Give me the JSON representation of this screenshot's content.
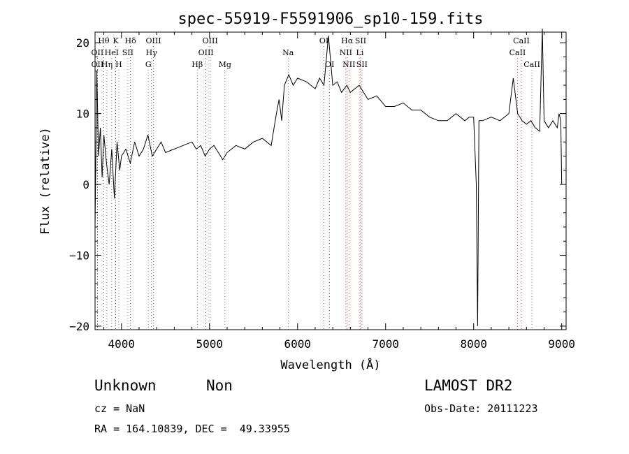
{
  "chart_data": {
    "type": "line",
    "title": "spec-55919-F5591906_sp10-159.fits",
    "xlabel": "Wavelength (Å)",
    "ylabel": "Flux (relative)",
    "xlim": [
      3700,
      9050
    ],
    "ylim": [
      -20.5,
      21.5
    ],
    "xticks": [
      4000,
      5000,
      6000,
      7000,
      8000,
      9000
    ],
    "xtick_labels": [
      "4000",
      "5000",
      "6000",
      "7000",
      "8000",
      "9000"
    ],
    "yticks": [
      -20,
      -10,
      0,
      10,
      20
    ],
    "ytick_labels": [
      "−20",
      "−10",
      "0",
      "10",
      "20"
    ],
    "grid": false,
    "series": [
      {
        "x": [
          3700,
          3720,
          3740,
          3760,
          3780,
          3800,
          3830,
          3860,
          3890,
          3920,
          3950,
          3980,
          4000,
          4050,
          4100,
          4150,
          4200,
          4250,
          4300,
          4350,
          4400,
          4450,
          4500,
          4600,
          4700,
          4800,
          4850,
          4900,
          4950,
          5000,
          5050,
          5100,
          5150,
          5200,
          5250,
          5300,
          5400,
          5500,
          5600,
          5700,
          5760,
          5790,
          5820,
          5850,
          5900,
          5950,
          6000,
          6100,
          6200,
          6250,
          6300,
          6350,
          6400,
          6450,
          6500,
          6560,
          6600,
          6700,
          6800,
          6900,
          7000,
          7100,
          7200,
          7300,
          7400,
          7500,
          7600,
          7700,
          7800,
          7900,
          7950,
          8000,
          8030,
          8045,
          8060,
          8100,
          8200,
          8300,
          8400,
          8450,
          8500,
          8550,
          8600,
          8650,
          8700,
          8750,
          8780,
          8800,
          8850,
          8900,
          8950,
          8970,
          8990,
          9000
        ],
        "y": [
          -6,
          16,
          4,
          8,
          1,
          7,
          3,
          0,
          5,
          -2,
          6,
          2,
          4,
          5,
          3,
          6,
          4,
          5,
          7,
          4,
          5,
          6,
          4.5,
          5,
          5.5,
          6,
          5,
          5.5,
          4,
          5,
          5.5,
          4.5,
          3.5,
          4.5,
          5,
          5.5,
          5,
          6,
          6.5,
          5.5,
          10,
          12,
          9,
          14,
          15.5,
          14,
          15,
          14.5,
          13.5,
          15,
          14,
          21,
          14,
          14.5,
          13,
          14,
          13,
          14,
          12,
          12.5,
          11,
          11,
          11.5,
          10.5,
          10.5,
          9.5,
          9,
          9,
          10,
          9,
          9.5,
          9.5,
          0,
          -20,
          9,
          9,
          9.5,
          9,
          10,
          15,
          10,
          9,
          8.5,
          9,
          8,
          7.5,
          22,
          9,
          8,
          9,
          8,
          10,
          9,
          0
        ]
      }
    ],
    "line_markers": [
      {
        "label": "Hθ",
        "x": 3798,
        "row": 0,
        "color": "black"
      },
      {
        "label": "K",
        "x": 3934,
        "row": 0,
        "color": "black"
      },
      {
        "label": "Hδ",
        "x": 4102,
        "row": 0,
        "color": "black"
      },
      {
        "label": "OII",
        "x": 3727,
        "row": 1,
        "color": "black"
      },
      {
        "label": "HeI",
        "x": 3889,
        "row": 1,
        "color": "black"
      },
      {
        "label": "SII",
        "x": 4072,
        "row": 1,
        "color": "black"
      },
      {
        "label": "OII",
        "x": 3727,
        "row": 2,
        "color": "black"
      },
      {
        "label": "Hη",
        "x": 3835,
        "row": 2,
        "color": "black"
      },
      {
        "label": "H",
        "x": 3969,
        "row": 2,
        "color": "black"
      },
      {
        "label": "OIII",
        "x": 4363,
        "row": 0,
        "color": "black"
      },
      {
        "label": "Hγ",
        "x": 4341,
        "row": 1,
        "color": "black"
      },
      {
        "label": "G",
        "x": 4305,
        "row": 2,
        "color": "black"
      },
      {
        "label": "OIII",
        "x": 5007,
        "row": 0,
        "color": "black"
      },
      {
        "label": "OIII",
        "x": 4959,
        "row": 1,
        "color": "black"
      },
      {
        "label": "Hβ",
        "x": 4861,
        "row": 2,
        "color": "black"
      },
      {
        "label": "Mg",
        "x": 5175,
        "row": 2,
        "color": "black"
      },
      {
        "label": "Na",
        "x": 5893,
        "row": 1,
        "color": "black"
      },
      {
        "label": "OI",
        "x": 6300,
        "row": 0,
        "color": "black"
      },
      {
        "label": "OI",
        "x": 6364,
        "row": 2,
        "color": "black"
      },
      {
        "label": "Hα",
        "x": 6563,
        "row": 0,
        "color": "red"
      },
      {
        "label": "SII",
        "x": 6716,
        "row": 0,
        "color": "red"
      },
      {
        "label": "NII",
        "x": 6548,
        "row": 1,
        "color": "red"
      },
      {
        "label": "Li",
        "x": 6708,
        "row": 1,
        "color": "red"
      },
      {
        "label": "NII",
        "x": 6584,
        "row": 2,
        "color": "red"
      },
      {
        "label": "SII",
        "x": 6731,
        "row": 2,
        "color": "red"
      },
      {
        "label": "CaII",
        "x": 8542,
        "row": 0,
        "color": "red"
      },
      {
        "label": "CaII",
        "x": 8498,
        "row": 1,
        "color": "red"
      },
      {
        "label": "CaII",
        "x": 8662,
        "row": 2,
        "color": "red"
      }
    ]
  },
  "info": {
    "class": "Unknown",
    "subclass": "Non",
    "cz": "cz = NaN",
    "coords": "RA = 164.10839, DEC =  49.33955",
    "survey": "LAMOST DR2",
    "obs_date": "Obs-Date: 20111223"
  }
}
